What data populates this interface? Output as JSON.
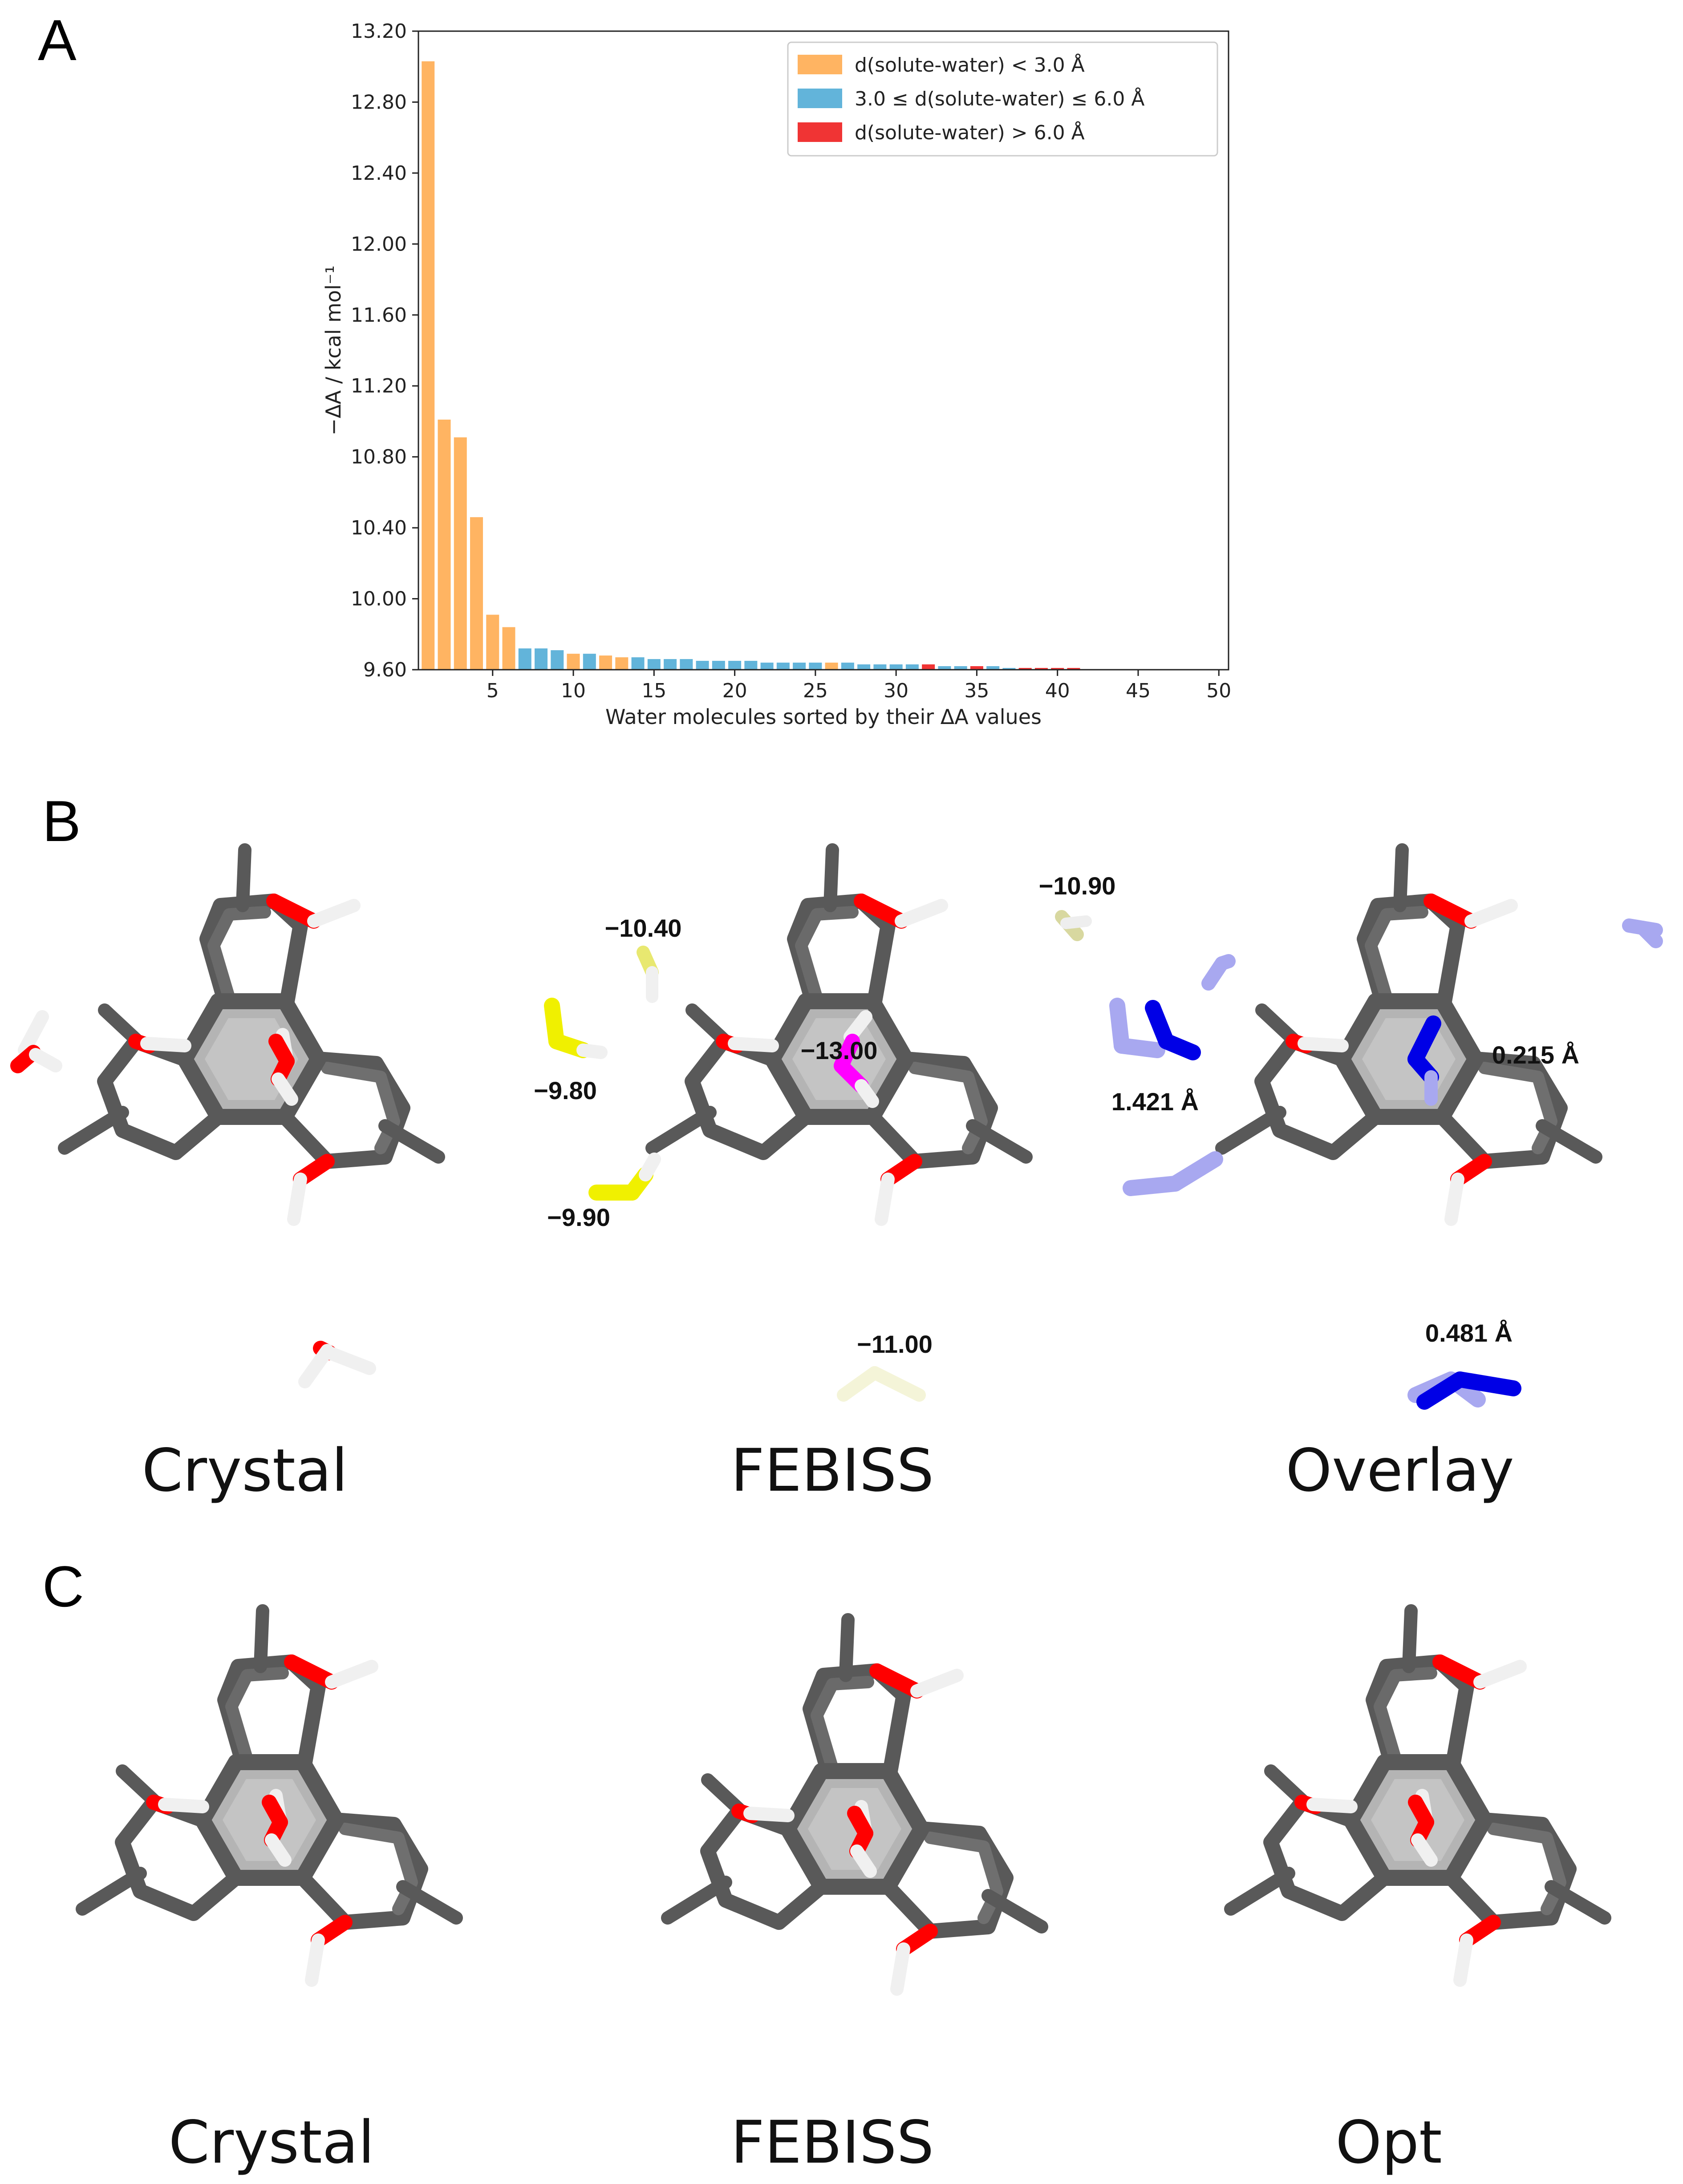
{
  "panels": {
    "a_label": "A",
    "b_label": "B",
    "c_label": "C"
  },
  "chart_data": {
    "type": "bar",
    "title": "",
    "xlabel": "Water molecules sorted by their ΔA values",
    "ylabel": "−ΔA / kcal mol⁻¹",
    "xlim": [
      0.4,
      50.6
    ],
    "ylim": [
      9.6,
      13.2
    ],
    "xticks": [
      5,
      10,
      15,
      20,
      25,
      30,
      35,
      40,
      45,
      50
    ],
    "yticks": [
      "9.60",
      "10.00",
      "10.40",
      "10.80",
      "11.20",
      "11.60",
      "12.00",
      "12.40",
      "12.80",
      "13.20"
    ],
    "legend": {
      "position": "top-right",
      "entries": [
        {
          "label": "d(solute-water) < 3.0 Å",
          "color": "#FFB462"
        },
        {
          "label": "3.0 ≤ d(solute-water) ≤ 6.0 Å",
          "color": "#62B4DA"
        },
        {
          "label": "d(solute-water) > 6.0 Å",
          "color": "#F03434"
        }
      ]
    },
    "bars": [
      {
        "x": 1,
        "value": 13.03,
        "group": 0
      },
      {
        "x": 2,
        "value": 11.01,
        "group": 0
      },
      {
        "x": 3,
        "value": 10.91,
        "group": 0
      },
      {
        "x": 4,
        "value": 10.46,
        "group": 0
      },
      {
        "x": 5,
        "value": 9.91,
        "group": 0
      },
      {
        "x": 6,
        "value": 9.84,
        "group": 0
      },
      {
        "x": 7,
        "value": 9.72,
        "group": 1
      },
      {
        "x": 8,
        "value": 9.72,
        "group": 1
      },
      {
        "x": 9,
        "value": 9.71,
        "group": 1
      },
      {
        "x": 10,
        "value": 9.69,
        "group": 0
      },
      {
        "x": 11,
        "value": 9.69,
        "group": 1
      },
      {
        "x": 12,
        "value": 9.68,
        "group": 0
      },
      {
        "x": 13,
        "value": 9.67,
        "group": 0
      },
      {
        "x": 14,
        "value": 9.67,
        "group": 1
      },
      {
        "x": 15,
        "value": 9.66,
        "group": 1
      },
      {
        "x": 16,
        "value": 9.66,
        "group": 1
      },
      {
        "x": 17,
        "value": 9.66,
        "group": 1
      },
      {
        "x": 18,
        "value": 9.65,
        "group": 1
      },
      {
        "x": 19,
        "value": 9.65,
        "group": 1
      },
      {
        "x": 20,
        "value": 9.65,
        "group": 1
      },
      {
        "x": 21,
        "value": 9.65,
        "group": 1
      },
      {
        "x": 22,
        "value": 9.64,
        "group": 1
      },
      {
        "x": 23,
        "value": 9.64,
        "group": 1
      },
      {
        "x": 24,
        "value": 9.64,
        "group": 1
      },
      {
        "x": 25,
        "value": 9.64,
        "group": 1
      },
      {
        "x": 26,
        "value": 9.64,
        "group": 0
      },
      {
        "x": 27,
        "value": 9.64,
        "group": 1
      },
      {
        "x": 28,
        "value": 9.63,
        "group": 1
      },
      {
        "x": 29,
        "value": 9.63,
        "group": 1
      },
      {
        "x": 30,
        "value": 9.63,
        "group": 1
      },
      {
        "x": 31,
        "value": 9.63,
        "group": 1
      },
      {
        "x": 32,
        "value": 9.63,
        "group": 2
      },
      {
        "x": 33,
        "value": 9.62,
        "group": 1
      },
      {
        "x": 34,
        "value": 9.62,
        "group": 1
      },
      {
        "x": 35,
        "value": 9.62,
        "group": 2
      },
      {
        "x": 36,
        "value": 9.62,
        "group": 1
      },
      {
        "x": 37,
        "value": 9.61,
        "group": 1
      },
      {
        "x": 38,
        "value": 9.61,
        "group": 2
      },
      {
        "x": 39,
        "value": 9.61,
        "group": 2
      },
      {
        "x": 40,
        "value": 9.61,
        "group": 2
      },
      {
        "x": 41,
        "value": 9.61,
        "group": 2
      }
    ]
  },
  "panel_b": {
    "captions": {
      "crystal": "Crystal",
      "febiss": "FEBISS",
      "overlay": "Overlay"
    },
    "febiss_values": {
      "v1": "−10.40",
      "v2": "−10.90",
      "v3": "−13.00",
      "v4": "−9.80",
      "v5": "−9.90",
      "v6": "−11.00"
    },
    "overlay_distances": {
      "d1": "0.215 Å",
      "d2": "1.421 Å",
      "d3": "0.481 Å"
    }
  },
  "panel_c": {
    "captions": {
      "crystal": "Crystal",
      "febiss": "FEBISS",
      "opt": "Opt"
    }
  },
  "colors": {
    "carbon": "#595959",
    "oxygen": "#FF0000",
    "hydrogen": "#F4F4F4",
    "yellow_water": "#F0F000",
    "magenta_water": "#FF00FF",
    "blue_water": "#0000E6",
    "pale_blue_water": "#A8A8F0"
  }
}
